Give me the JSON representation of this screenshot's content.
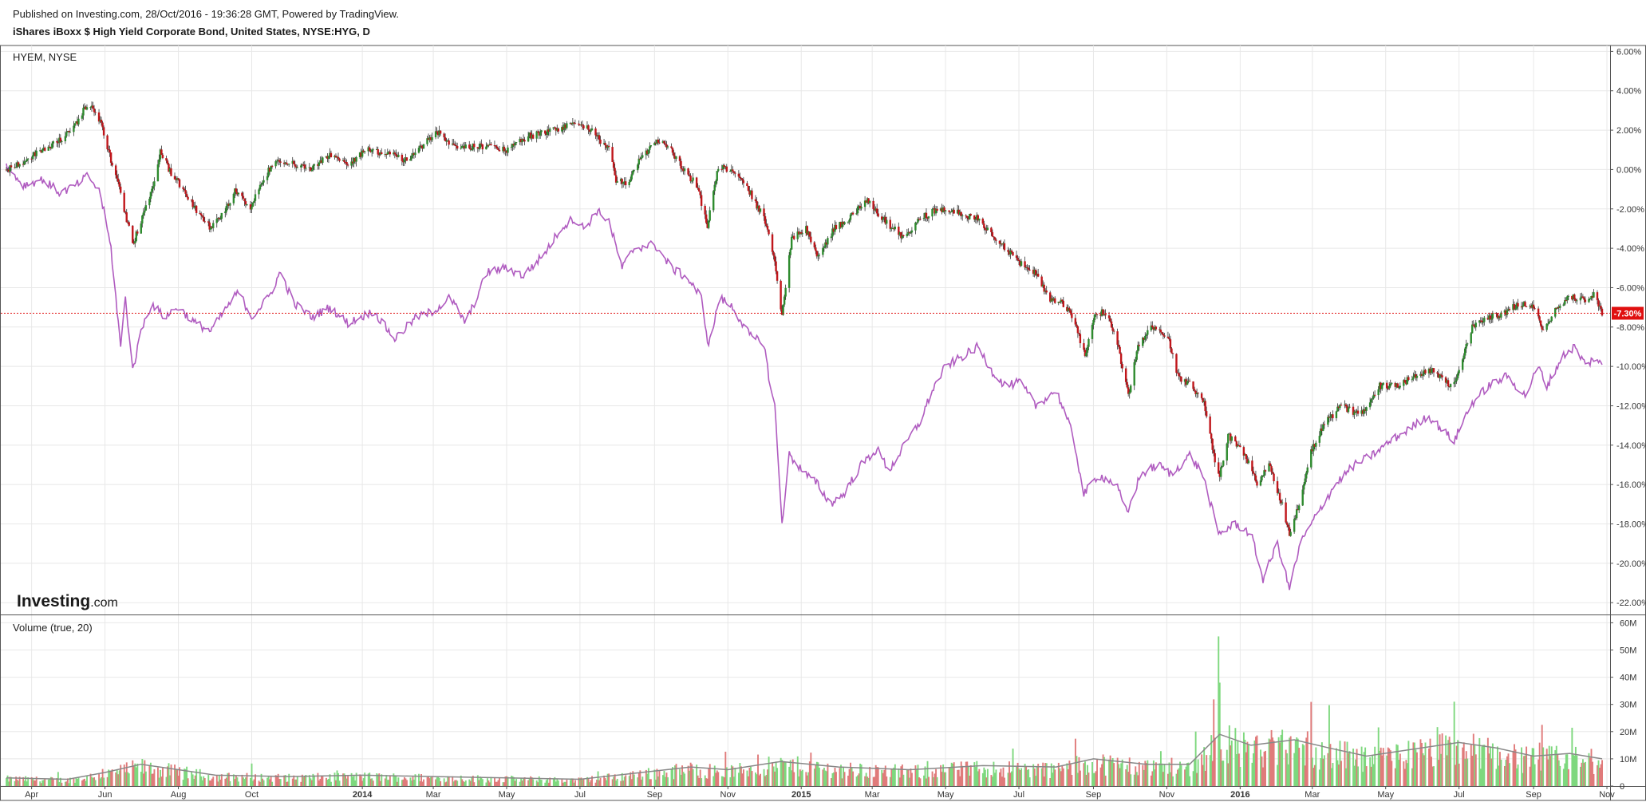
{
  "header": {
    "published": "Published on Investing.com, 28/Oct/2016 - 19:36:28 GMT, Powered by TradingView.",
    "title": "iShares iBoxx $ High Yield Corporate Bond, United States, NYSE:HYG, D"
  },
  "price_pane": {
    "label": "HYEM, NYSE",
    "last_value_badge": "-7.30%",
    "watermark": {
      "bold": "Investing",
      "light": ".com"
    }
  },
  "volume_pane": {
    "label": "Volume (true, 20)"
  },
  "colors": {
    "up": "#2e8b2e",
    "down": "#c0161b",
    "compare_line": "#b05cc0",
    "vol_up": "#7ed87e",
    "vol_down": "#e07a7a",
    "vol_ma": "#888888",
    "last_line": "#e01010",
    "grid": "#e8e8e8",
    "border": "#555555"
  },
  "chart_data": [
    {
      "type": "candlestick",
      "title": "iShares iBoxx $ High Yield Corporate Bond, United States, NYSE:HYG, D",
      "compare_series": "HYEM, NYSE",
      "x_start": "2013-03-11",
      "x_end": "2016-10-28",
      "x_ticks": [
        {
          "date": "2013-04-01",
          "label": "Apr"
        },
        {
          "date": "2013-06-01",
          "label": "Jun"
        },
        {
          "date": "2013-08-01",
          "label": "Aug"
        },
        {
          "date": "2013-10-01",
          "label": "Oct"
        },
        {
          "date": "2014-01-01",
          "label": "2014",
          "bold": true
        },
        {
          "date": "2014-03-01",
          "label": "Mar"
        },
        {
          "date": "2014-05-01",
          "label": "May"
        },
        {
          "date": "2014-07-01",
          "label": "Jul"
        },
        {
          "date": "2014-09-01",
          "label": "Sep"
        },
        {
          "date": "2014-11-01",
          "label": "Nov"
        },
        {
          "date": "2015-01-01",
          "label": "2015",
          "bold": true
        },
        {
          "date": "2015-03-01",
          "label": "Mar"
        },
        {
          "date": "2015-05-01",
          "label": "May"
        },
        {
          "date": "2015-07-01",
          "label": "Jul"
        },
        {
          "date": "2015-09-01",
          "label": "Sep"
        },
        {
          "date": "2015-11-01",
          "label": "Nov"
        },
        {
          "date": "2016-01-01",
          "label": "2016",
          "bold": true
        },
        {
          "date": "2016-03-01",
          "label": "Mar"
        },
        {
          "date": "2016-05-01",
          "label": "May"
        },
        {
          "date": "2016-07-01",
          "label": "Jul"
        },
        {
          "date": "2016-09-01",
          "label": "Sep"
        },
        {
          "date": "2016-11-01",
          "label": "Nov"
        }
      ],
      "y_unit": "%",
      "y_ticks": [
        "6.00%",
        "4.00%",
        "2.00%",
        "0.00%",
        "-2.00%",
        "-4.00%",
        "-6.00%",
        "-8.00%",
        "-10.00%",
        "-12.00%",
        "-14.00%",
        "-16.00%",
        "-18.00%",
        "-20.00%",
        "-22.00%"
      ],
      "y_tick_values": [
        6,
        4,
        2,
        0,
        -2,
        -4,
        -6,
        -8,
        -10,
        -12,
        -14,
        -16,
        -18,
        -20,
        -22
      ],
      "ylim": [
        -22.6,
        6.3
      ],
      "last_value": -7.3,
      "hyg_series": [
        [
          "2013-03-11",
          0.0
        ],
        [
          "2013-03-25",
          0.4
        ],
        [
          "2013-04-10",
          1.0
        ],
        [
          "2013-04-25",
          1.5
        ],
        [
          "2013-05-08",
          2.3
        ],
        [
          "2013-05-18",
          3.4
        ],
        [
          "2013-05-28",
          2.5
        ],
        [
          "2013-06-06",
          0.5
        ],
        [
          "2013-06-14",
          -1.2
        ],
        [
          "2013-06-24",
          -3.8
        ],
        [
          "2013-07-02",
          -2.5
        ],
        [
          "2013-07-10",
          -1.0
        ],
        [
          "2013-07-17",
          0.9
        ],
        [
          "2013-07-26",
          -0.2
        ],
        [
          "2013-08-05",
          -1.0
        ],
        [
          "2013-08-15",
          -2.0
        ],
        [
          "2013-08-28",
          -3.0
        ],
        [
          "2013-09-08",
          -2.2
        ],
        [
          "2013-09-18",
          -1.0
        ],
        [
          "2013-09-30",
          -2.0
        ],
        [
          "2013-10-10",
          -0.5
        ],
        [
          "2013-10-22",
          0.5
        ],
        [
          "2013-11-05",
          0.3
        ],
        [
          "2013-11-20",
          0.0
        ],
        [
          "2013-12-05",
          0.8
        ],
        [
          "2013-12-20",
          0.3
        ],
        [
          "2014-01-05",
          1.0
        ],
        [
          "2014-01-25",
          0.8
        ],
        [
          "2014-02-05",
          0.4
        ],
        [
          "2014-02-20",
          1.2
        ],
        [
          "2014-03-05",
          1.9
        ],
        [
          "2014-03-20",
          1.1
        ],
        [
          "2014-04-10",
          1.2
        ],
        [
          "2014-05-01",
          1.0
        ],
        [
          "2014-05-20",
          1.7
        ],
        [
          "2014-06-10",
          2.0
        ],
        [
          "2014-06-25",
          2.4
        ],
        [
          "2014-07-10",
          2.0
        ],
        [
          "2014-07-25",
          1.0
        ],
        [
          "2014-07-31",
          -0.5
        ],
        [
          "2014-08-08",
          -0.8
        ],
        [
          "2014-08-20",
          0.5
        ],
        [
          "2014-09-01",
          1.4
        ],
        [
          "2014-09-12",
          1.2
        ],
        [
          "2014-09-25",
          0.0
        ],
        [
          "2014-10-06",
          -0.8
        ],
        [
          "2014-10-15",
          -2.8
        ],
        [
          "2014-10-24",
          0.1
        ],
        [
          "2014-11-05",
          0.0
        ],
        [
          "2014-11-18",
          -1.0
        ],
        [
          "2014-12-01",
          -2.5
        ],
        [
          "2014-12-10",
          -4.5
        ],
        [
          "2014-12-16",
          -7.5
        ],
        [
          "2014-12-24",
          -3.5
        ],
        [
          "2015-01-05",
          -3.0
        ],
        [
          "2015-01-15",
          -4.5
        ],
        [
          "2015-01-28",
          -3.0
        ],
        [
          "2015-02-10",
          -2.5
        ],
        [
          "2015-02-25",
          -1.5
        ],
        [
          "2015-03-05",
          -2.2
        ],
        [
          "2015-03-15",
          -2.8
        ],
        [
          "2015-03-28",
          -3.5
        ],
        [
          "2015-04-10",
          -2.5
        ],
        [
          "2015-04-25",
          -2.0
        ],
        [
          "2015-05-10",
          -2.2
        ],
        [
          "2015-05-28",
          -2.5
        ],
        [
          "2015-06-08",
          -3.2
        ],
        [
          "2015-06-20",
          -4.0
        ],
        [
          "2015-07-02",
          -4.8
        ],
        [
          "2015-07-15",
          -5.2
        ],
        [
          "2015-07-25",
          -6.5
        ],
        [
          "2015-08-05",
          -6.7
        ],
        [
          "2015-08-15",
          -7.5
        ],
        [
          "2015-08-25",
          -9.5
        ],
        [
          "2015-09-02",
          -7.5
        ],
        [
          "2015-09-10",
          -7.2
        ],
        [
          "2015-09-20",
          -8.5
        ],
        [
          "2015-09-30",
          -11.5
        ],
        [
          "2015-10-08",
          -9.0
        ],
        [
          "2015-10-20",
          -8.0
        ],
        [
          "2015-11-02",
          -8.5
        ],
        [
          "2015-11-10",
          -10.5
        ],
        [
          "2015-11-22",
          -11.0
        ],
        [
          "2015-12-02",
          -11.8
        ],
        [
          "2015-12-10",
          -14.5
        ],
        [
          "2015-12-15",
          -15.5
        ],
        [
          "2015-12-22",
          -13.5
        ],
        [
          "2016-01-05",
          -14.5
        ],
        [
          "2016-01-15",
          -16.0
        ],
        [
          "2016-01-25",
          -15.0
        ],
        [
          "2016-02-05",
          -17.0
        ],
        [
          "2016-02-11",
          -18.5
        ],
        [
          "2016-02-18",
          -17.2
        ],
        [
          "2016-02-28",
          -14.5
        ],
        [
          "2016-03-10",
          -13.0
        ],
        [
          "2016-03-25",
          -12.0
        ],
        [
          "2016-04-10",
          -12.5
        ],
        [
          "2016-04-25",
          -11.0
        ],
        [
          "2016-05-10",
          -11.0
        ],
        [
          "2016-05-25",
          -10.5
        ],
        [
          "2016-06-10",
          -10.2
        ],
        [
          "2016-06-24",
          -11.0
        ],
        [
          "2016-06-28",
          -10.8
        ],
        [
          "2016-07-12",
          -8.0
        ],
        [
          "2016-07-25",
          -7.5
        ],
        [
          "2016-08-08",
          -7.3
        ],
        [
          "2016-08-20",
          -6.8
        ],
        [
          "2016-09-01",
          -7.0
        ],
        [
          "2016-09-09",
          -8.2
        ],
        [
          "2016-09-20",
          -7.0
        ],
        [
          "2016-10-01",
          -6.5
        ],
        [
          "2016-10-15",
          -6.6
        ],
        [
          "2016-10-22",
          -6.3
        ],
        [
          "2016-10-28",
          -7.3
        ]
      ],
      "hyem_series": [
        [
          "2013-03-11",
          0.2
        ],
        [
          "2013-03-25",
          -0.8
        ],
        [
          "2013-04-10",
          -0.5
        ],
        [
          "2013-04-25",
          -1.2
        ],
        [
          "2013-05-08",
          -0.8
        ],
        [
          "2013-05-18",
          -0.3
        ],
        [
          "2013-05-28",
          -1.2
        ],
        [
          "2013-06-06",
          -4.0
        ],
        [
          "2013-06-10",
          -6.5
        ],
        [
          "2013-06-14",
          -9.0
        ],
        [
          "2013-06-18",
          -6.5
        ],
        [
          "2013-06-24",
          -10.2
        ],
        [
          "2013-07-02",
          -8.0
        ],
        [
          "2013-07-10",
          -6.8
        ],
        [
          "2013-07-20",
          -7.5
        ],
        [
          "2013-08-01",
          -7.0
        ],
        [
          "2013-08-15",
          -7.8
        ],
        [
          "2013-08-28",
          -8.2
        ],
        [
          "2013-09-08",
          -7.2
        ],
        [
          "2013-09-20",
          -6.2
        ],
        [
          "2013-10-01",
          -7.5
        ],
        [
          "2013-10-15",
          -6.5
        ],
        [
          "2013-10-25",
          -5.2
        ],
        [
          "2013-11-05",
          -6.8
        ],
        [
          "2013-11-20",
          -7.5
        ],
        [
          "2013-12-05",
          -7.0
        ],
        [
          "2013-12-20",
          -7.8
        ],
        [
          "2014-01-10",
          -7.2
        ],
        [
          "2014-01-28",
          -8.6
        ],
        [
          "2014-02-15",
          -7.5
        ],
        [
          "2014-03-01",
          -7.2
        ],
        [
          "2014-03-15",
          -6.5
        ],
        [
          "2014-03-28",
          -7.8
        ],
        [
          "2014-04-15",
          -5.2
        ],
        [
          "2014-05-01",
          -5.0
        ],
        [
          "2014-05-15",
          -5.4
        ],
        [
          "2014-06-01",
          -4.3
        ],
        [
          "2014-06-15",
          -3.0
        ],
        [
          "2014-06-25",
          -2.5
        ],
        [
          "2014-07-05",
          -3.0
        ],
        [
          "2014-07-15",
          -2.1
        ],
        [
          "2014-07-25",
          -2.6
        ],
        [
          "2014-08-05",
          -5.0
        ],
        [
          "2014-08-15",
          -4.0
        ],
        [
          "2014-09-01",
          -3.8
        ],
        [
          "2014-09-15",
          -5.0
        ],
        [
          "2014-09-28",
          -5.5
        ],
        [
          "2014-10-10",
          -6.5
        ],
        [
          "2014-10-16",
          -9.0
        ],
        [
          "2014-10-25",
          -6.5
        ],
        [
          "2014-11-05",
          -7.0
        ],
        [
          "2014-11-20",
          -8.5
        ],
        [
          "2014-12-01",
          -8.8
        ],
        [
          "2014-12-05",
          -10.5
        ],
        [
          "2014-12-10",
          -12.0
        ],
        [
          "2014-12-16",
          -18.0
        ],
        [
          "2014-12-22",
          -14.5
        ],
        [
          "2015-01-05",
          -15.5
        ],
        [
          "2015-01-15",
          -16.0
        ],
        [
          "2015-01-25",
          -17.0
        ],
        [
          "2015-02-05",
          -16.5
        ],
        [
          "2015-02-20",
          -15.0
        ],
        [
          "2015-03-05",
          -14.2
        ],
        [
          "2015-03-15",
          -15.3
        ],
        [
          "2015-03-28",
          -14.0
        ],
        [
          "2015-04-10",
          -12.8
        ],
        [
          "2015-04-20",
          -11.2
        ],
        [
          "2015-05-01",
          -10.0
        ],
        [
          "2015-05-15",
          -9.5
        ],
        [
          "2015-05-28",
          -9.0
        ],
        [
          "2015-06-08",
          -10.2
        ],
        [
          "2015-06-20",
          -11.0
        ],
        [
          "2015-07-02",
          -10.8
        ],
        [
          "2015-07-15",
          -12.0
        ],
        [
          "2015-08-01",
          -11.2
        ],
        [
          "2015-08-15",
          -13.5
        ],
        [
          "2015-08-24",
          -16.5
        ],
        [
          "2015-09-05",
          -15.5
        ],
        [
          "2015-09-20",
          -16.0
        ],
        [
          "2015-09-29",
          -17.5
        ],
        [
          "2015-10-10",
          -15.5
        ],
        [
          "2015-10-25",
          -15.0
        ],
        [
          "2015-11-05",
          -15.5
        ],
        [
          "2015-11-20",
          -14.5
        ],
        [
          "2015-12-01",
          -15.5
        ],
        [
          "2015-12-14",
          -18.5
        ],
        [
          "2015-12-28",
          -18.0
        ],
        [
          "2016-01-10",
          -18.5
        ],
        [
          "2016-01-20",
          -20.8
        ],
        [
          "2016-02-01",
          -19.0
        ],
        [
          "2016-02-11",
          -21.3
        ],
        [
          "2016-02-20",
          -19.0
        ],
        [
          "2016-03-05",
          -17.5
        ],
        [
          "2016-03-20",
          -16.0
        ],
        [
          "2016-04-05",
          -15.0
        ],
        [
          "2016-04-20",
          -14.5
        ],
        [
          "2016-05-05",
          -13.8
        ],
        [
          "2016-05-20",
          -13.2
        ],
        [
          "2016-06-05",
          -12.5
        ],
        [
          "2016-06-27",
          -13.8
        ],
        [
          "2016-07-10",
          -12.0
        ],
        [
          "2016-07-25",
          -11.0
        ],
        [
          "2016-08-10",
          -10.5
        ],
        [
          "2016-08-25",
          -11.5
        ],
        [
          "2016-09-05",
          -10.0
        ],
        [
          "2016-09-12",
          -11.0
        ],
        [
          "2016-09-25",
          -9.5
        ],
        [
          "2016-10-05",
          -9.0
        ],
        [
          "2016-10-15",
          -10.0
        ],
        [
          "2016-10-22",
          -9.5
        ],
        [
          "2016-10-28",
          -10.0
        ]
      ]
    },
    {
      "type": "bar",
      "title": "Volume (true, 20)",
      "y_ticks": [
        "60M",
        "50M",
        "40M",
        "30M",
        "20M",
        "10M",
        "0"
      ],
      "y_tick_values": [
        60,
        50,
        40,
        30,
        20,
        10,
        0
      ],
      "y_unit": "M",
      "ylim": [
        0,
        61
      ],
      "volume_ma_series": [
        [
          "2013-03-11",
          3.0
        ],
        [
          "2013-05-01",
          2.5
        ],
        [
          "2013-06-01",
          5.0
        ],
        [
          "2013-07-01",
          8.0
        ],
        [
          "2013-08-01",
          6.0
        ],
        [
          "2013-09-01",
          4.0
        ],
        [
          "2013-11-01",
          3.5
        ],
        [
          "2014-01-01",
          4.0
        ],
        [
          "2014-03-01",
          3.5
        ],
        [
          "2014-05-01",
          3.0
        ],
        [
          "2014-07-01",
          2.5
        ],
        [
          "2014-08-01",
          4.0
        ],
        [
          "2014-10-01",
          7.0
        ],
        [
          "2014-11-01",
          6.0
        ],
        [
          "2014-12-15",
          9.0
        ],
        [
          "2015-02-01",
          7.0
        ],
        [
          "2015-04-01",
          6.0
        ],
        [
          "2015-06-01",
          7.5
        ],
        [
          "2015-08-01",
          7.0
        ],
        [
          "2015-09-01",
          10.0
        ],
        [
          "2015-10-15",
          8.0
        ],
        [
          "2015-11-20",
          8.0
        ],
        [
          "2015-12-15",
          19.0
        ],
        [
          "2016-01-10",
          15.0
        ],
        [
          "2016-02-15",
          17.0
        ],
        [
          "2016-03-15",
          14.0
        ],
        [
          "2016-04-15",
          11.0
        ],
        [
          "2016-05-15",
          13.0
        ],
        [
          "2016-07-01",
          16.0
        ],
        [
          "2016-08-01",
          14.0
        ],
        [
          "2016-09-01",
          11.0
        ],
        [
          "2016-10-01",
          12.0
        ],
        [
          "2016-10-28",
          10.0
        ]
      ]
    }
  ]
}
